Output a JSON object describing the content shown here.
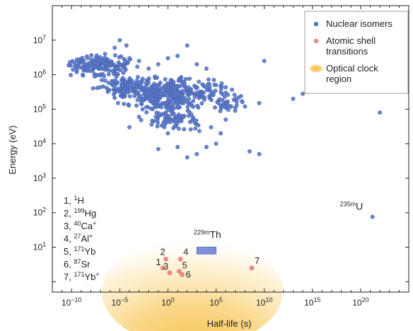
{
  "chart_data": {
    "type": "scatter",
    "xlabel": "Half-life (s)",
    "ylabel": "Energy (eV)",
    "x_scale": "log",
    "y_scale": "log",
    "xlim": [
      1e-12,
      1e+25
    ],
    "ylim": [
      0.5,
      100000000.0
    ],
    "grid": false,
    "legend_position": "top-right",
    "legend": [
      {
        "label": "Nuclear isomers",
        "color": "#5a78c8"
      },
      {
        "label": "Atomic shell transitions",
        "label_lines": [
          "Atomic shell",
          "transitions"
        ],
        "color": "#f08a8a"
      },
      {
        "label": "Optical clock region",
        "label_lines": [
          "Optical clock",
          "region"
        ],
        "color": "#f6c04a"
      }
    ],
    "x_ticks": [
      {
        "value": 1e-10,
        "base": "10",
        "exp": "−10"
      },
      {
        "value": 1e-05,
        "base": "10",
        "exp": "−5"
      },
      {
        "value": 1,
        "base": "10",
        "exp": "0"
      },
      {
        "value": 100000.0,
        "base": "10",
        "exp": "5"
      },
      {
        "value": 10000000000.0,
        "base": "10",
        "exp": "10"
      },
      {
        "value": 1000000000000000.0,
        "base": "10",
        "exp": "15"
      },
      {
        "value": 1e+20,
        "base": "10",
        "exp": "20"
      }
    ],
    "y_ticks": [
      {
        "value": 10,
        "base": "10",
        "exp": "1"
      },
      {
        "value": 100,
        "base": "10",
        "exp": "2"
      },
      {
        "value": 1000,
        "base": "10",
        "exp": "3"
      },
      {
        "value": 10000,
        "base": "10",
        "exp": "4"
      },
      {
        "value": 100000,
        "base": "10",
        "exp": "5"
      },
      {
        "value": 1000000,
        "base": "10",
        "exp": "6"
      },
      {
        "value": 10000000,
        "base": "10",
        "exp": "7"
      }
    ],
    "nuclear_isomers_explicit": [
      {
        "x": 3e-08,
        "y": 3000000.0
      },
      {
        "x": 1e-07,
        "y": 1500000.0
      },
      {
        "x": 3e-07,
        "y": 4000000.0
      },
      {
        "x": 1e-06,
        "y": 2000000.0
      },
      {
        "x": 3e-06,
        "y": 6000000.0
      },
      {
        "x": 1e-05,
        "y": 10000000.0
      },
      {
        "x": 5e-05,
        "y": 7000000.0
      },
      {
        "x": 0.0001,
        "y": 3000000.0
      },
      {
        "x": 0.001,
        "y": 2500000.0
      },
      {
        "x": 0.01,
        "y": 1500000.0
      },
      {
        "x": 0.1,
        "y": 2000000.0
      },
      {
        "x": 1,
        "y": 3000000.0
      },
      {
        "x": 10,
        "y": 3500000.0
      },
      {
        "x": 100,
        "y": 7000000.0
      },
      {
        "x": 1000.0,
        "y": 2000000.0
      },
      {
        "x": 10000.0,
        "y": 1500000.0
      },
      {
        "x": 100000.0,
        "y": 500000.0
      },
      {
        "x": 1000000.0,
        "y": 300000.0
      },
      {
        "x": 10000000.0,
        "y": 200000.0
      },
      {
        "x": 100000000.0,
        "y": 120000.0
      },
      {
        "x": 3000000000.0,
        "y": 150000.0
      },
      {
        "x": 10000000000.0,
        "y": 2500000.0
      },
      {
        "x": 10000000000000.0,
        "y": 200000.0
      },
      {
        "x": 100000000000000.0,
        "y": 280000.0
      },
      {
        "x": 1e+22,
        "y": 80000.0
      },
      {
        "x": 300000000.0,
        "y": 6000.0
      },
      {
        "x": 3000000000.0,
        "y": 5000.0
      },
      {
        "x": 0.1,
        "y": 7000.0
      },
      {
        "x": 1,
        "y": 20000.0
      },
      {
        "x": 10,
        "y": 8000.0
      },
      {
        "x": 100,
        "y": 4000.0
      },
      {
        "x": 1000.0,
        "y": 5000.0
      },
      {
        "x": 10000.0,
        "y": 8000.0
      },
      {
        "x": 30000.0,
        "y": 30000.0
      },
      {
        "x": 0.0001,
        "y": 30000.0
      },
      {
        "x": 0.001,
        "y": 60000.0
      },
      {
        "x": 100000.0,
        "y": 10000.0
      },
      {
        "x": 300000.0,
        "y": 20000.0
      },
      {
        "x": 1000000.0,
        "y": 50000.0
      },
      {
        "x": 1000.0,
        "y": 300000.0
      }
    ],
    "nuclear_isomers_cloud": [
      {
        "x_min": 1e-11,
        "x_max": 0.001,
        "y_min": 800000.0,
        "y_max": 4000000.0,
        "count": 150
      },
      {
        "x_min": 1e-06,
        "x_max": 1000000.0,
        "y_min": 100000.0,
        "y_max": 1000000.0,
        "count": 300
      },
      {
        "x_min": 0.001,
        "x_max": 10000.0,
        "y_min": 20000.0,
        "y_max": 200000.0,
        "count": 100
      },
      {
        "x_min": 1e-08,
        "x_max": 0.01,
        "y_min": 200000.0,
        "y_max": 1000000.0,
        "count": 80
      },
      {
        "x_min": 10000.0,
        "x_max": 100000000.0,
        "y_min": 50000.0,
        "y_max": 500000.0,
        "count": 40
      }
    ],
    "u235m": {
      "label_base": "235m",
      "label_element": "U",
      "x": 1.7e+21,
      "y": 76
    },
    "th229m": {
      "label_base": "229m",
      "label_element": "Th",
      "x_min": 1000.0,
      "x_max": 100000.0,
      "y": 8
    },
    "atomic_shell_transitions": [
      {
        "number": "1",
        "x": 0.3,
        "y": 2.5
      },
      {
        "number": "2",
        "x": 0.6,
        "y": 4.5
      },
      {
        "number": "3",
        "x": 1.5,
        "y": 1.8
      },
      {
        "number": "4",
        "x": 20,
        "y": 4.5
      },
      {
        "number": "5",
        "x": 15,
        "y": 2
      },
      {
        "number": "6",
        "x": 30,
        "y": 1.6
      },
      {
        "number": "7",
        "x": 500000000.0,
        "y": 2.5
      }
    ],
    "atomic_list": [
      {
        "n": "1, ",
        "iso": "1",
        "sym": "H"
      },
      {
        "n": "2, ",
        "iso": "199",
        "sym": "Hg"
      },
      {
        "n": "3, ",
        "iso": "40",
        "sym": "Ca",
        "ion": "+"
      },
      {
        "n": "4, ",
        "iso": "27",
        "sym": "Al",
        "ion": "+"
      },
      {
        "n": "5, ",
        "iso": "171",
        "sym": "Yb"
      },
      {
        "n": "6, ",
        "iso": "87",
        "sym": "Sr"
      },
      {
        "n": "7, ",
        "iso": "171",
        "sym": "Yb",
        "ion": "+"
      }
    ]
  }
}
